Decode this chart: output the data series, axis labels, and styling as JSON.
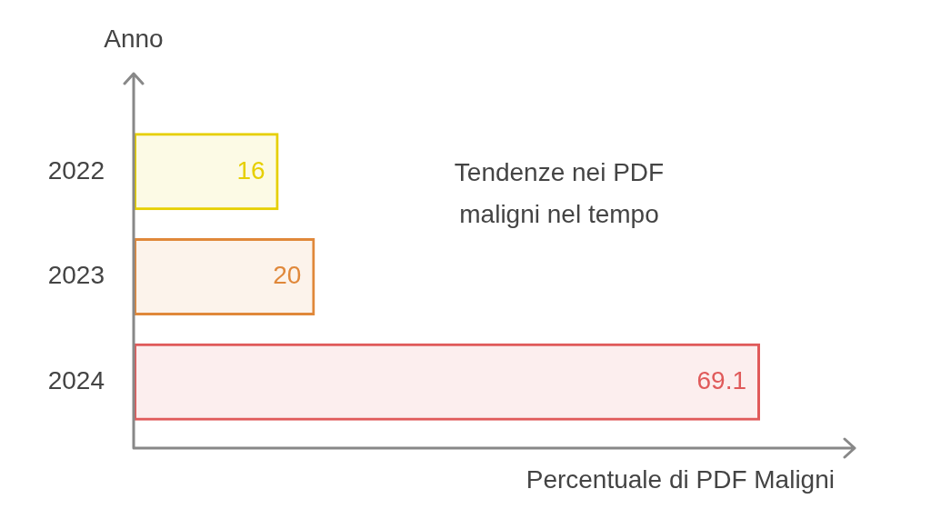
{
  "chart_data": {
    "type": "bar",
    "orientation": "horizontal",
    "title": "Tendenze nei PDF maligni nel tempo",
    "xlabel": "Percentuale di PDF Maligni",
    "ylabel": "Anno",
    "categories": [
      "2022",
      "2023",
      "2024"
    ],
    "values": [
      16,
      20,
      69.1
    ],
    "colors": [
      "#e6cf00",
      "#e0883a",
      "#e05a5a"
    ],
    "data_labels": true,
    "tick_labels": "y"
  }
}
